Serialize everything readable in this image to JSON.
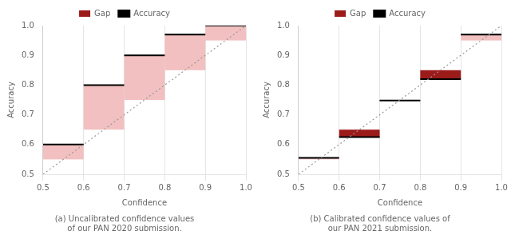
{
  "chart_data": [
    {
      "type": "reliability",
      "title": "(a) Uncalibrated confidence values\nof our PAN 2020 submission.",
      "xlabel": "Confidence",
      "ylabel": "Accuracy",
      "bins": [
        0.5,
        0.6,
        0.7,
        0.8,
        0.9,
        1.0
      ],
      "series": [
        {
          "type": "line",
          "line_style": "dotted",
          "color": "#999999",
          "x": [
            0.5,
            1.0
          ],
          "values": [
            0.5,
            1.0
          ]
        },
        {
          "name": "Gap",
          "type": "bar",
          "color": "#9b1a1a",
          "colors": [
            "#f2c0c0",
            "#f2c0c0",
            "#f2c0c0",
            "#f2c0c0",
            "#f2c0c0"
          ],
          "values": [
            0.55,
            0.65,
            0.75,
            0.85,
            0.95
          ]
        },
        {
          "name": "Accuracy",
          "type": "line",
          "color": "black",
          "values": [
            0.6,
            0.8,
            0.9,
            0.97,
            1.0
          ]
        }
      ],
      "xlim": [
        0.5,
        1.0
      ],
      "ylim": [
        0.5,
        1.0
      ],
      "xticks": [
        0.5,
        0.6,
        0.7,
        0.8,
        0.9,
        {
          "value": 1.0,
          "label": "1.0"
        }
      ],
      "yticks": [
        0.5,
        0.6,
        0.7,
        0.8,
        0.9,
        {
          "value": 1.0,
          "label": "1.0"
        }
      ],
      "grid": "x",
      "legend": "top"
    },
    {
      "type": "reliability",
      "title": "(b) Calibrated confidence values of\nour PAN 2021 submission.",
      "xlabel": "Confidence",
      "ylabel": "Accuracy",
      "bins": [
        0.5,
        0.6,
        0.7,
        0.8,
        0.9,
        1.0
      ],
      "series": [
        {
          "type": "line",
          "line_style": "dotted",
          "color": "#999999",
          "x": [
            0.5,
            1.0
          ],
          "values": [
            0.5,
            1.0
          ]
        },
        {
          "name": "Gap",
          "type": "bar",
          "color": "#9b1a1a",
          "colors": [
            "#f2c0c0",
            "#9b1a1a",
            "#9b1a1a",
            "#9b1a1a",
            "#f2c0c0"
          ],
          "values": [
            0.55,
            0.65,
            0.75,
            0.85,
            0.95
          ]
        },
        {
          "name": "Accuracy",
          "type": "line",
          "color": "black",
          "values": [
            0.555,
            0.625,
            0.748,
            0.82,
            0.97
          ]
        }
      ],
      "xlim": [
        0.5,
        1.0
      ],
      "ylim": [
        0.5,
        1.0
      ],
      "xticks": [
        0.5,
        0.6,
        0.7,
        0.8,
        0.9,
        {
          "value": 1.0,
          "label": "1.0"
        }
      ],
      "yticks": [
        0.5,
        0.6,
        0.7,
        0.8,
        0.9,
        {
          "value": 1.0,
          "label": "1.0"
        }
      ],
      "grid": "x",
      "legend": "top"
    }
  ]
}
